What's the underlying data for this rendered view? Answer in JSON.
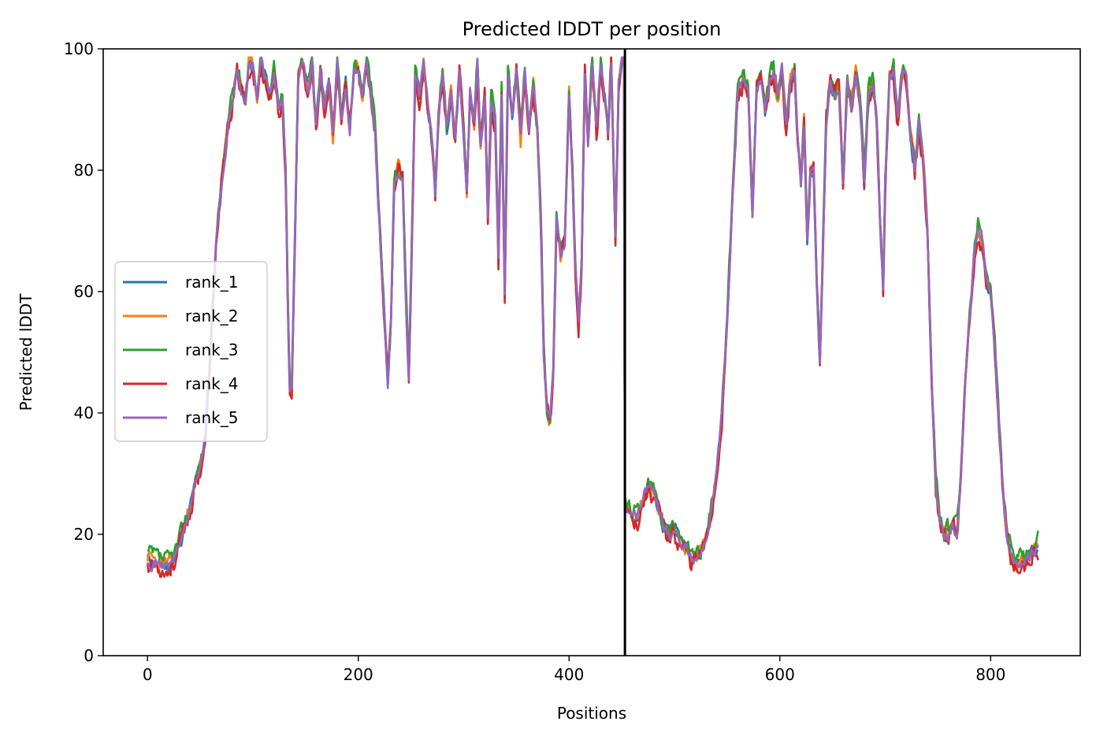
{
  "chart_data": {
    "type": "line",
    "title": "Predicted lDDT per position",
    "xlabel": "Positions",
    "ylabel": "Predicted lDDT",
    "xlim": [
      -42,
      885
    ],
    "ylim": [
      0,
      100
    ],
    "xticks": [
      0,
      200,
      400,
      600,
      800
    ],
    "yticks": [
      0,
      20,
      40,
      60,
      80,
      100
    ],
    "grid": false,
    "legend_position": "center-left",
    "chain_break_x": 453,
    "base_profile": [
      [
        0,
        16
      ],
      [
        5,
        15.5
      ],
      [
        10,
        15
      ],
      [
        15,
        15
      ],
      [
        20,
        14.5
      ],
      [
        25,
        16
      ],
      [
        30,
        18
      ],
      [
        35,
        21
      ],
      [
        40,
        24
      ],
      [
        45,
        28
      ],
      [
        50,
        31
      ],
      [
        55,
        36
      ],
      [
        60,
        50
      ],
      [
        65,
        68
      ],
      [
        70,
        77
      ],
      [
        75,
        85
      ],
      [
        80,
        91
      ],
      [
        85,
        96
      ],
      [
        90,
        93
      ],
      [
        93,
        91
      ],
      [
        96,
        97
      ],
      [
        100,
        97
      ],
      [
        104,
        92
      ],
      [
        108,
        98
      ],
      [
        112,
        95
      ],
      [
        116,
        92
      ],
      [
        120,
        96
      ],
      [
        124,
        90
      ],
      [
        128,
        91
      ],
      [
        131,
        80
      ],
      [
        133,
        60
      ],
      [
        135,
        44
      ],
      [
        137,
        44
      ],
      [
        140,
        70
      ],
      [
        143,
        96
      ],
      [
        147,
        98
      ],
      [
        150,
        95
      ],
      [
        153,
        93
      ],
      [
        156,
        98
      ],
      [
        160,
        87
      ],
      [
        164,
        96
      ],
      [
        168,
        90
      ],
      [
        172,
        95
      ],
      [
        176,
        86
      ],
      [
        180,
        97
      ],
      [
        184,
        88
      ],
      [
        188,
        94
      ],
      [
        192,
        87
      ],
      [
        196,
        97
      ],
      [
        200,
        96
      ],
      [
        204,
        92
      ],
      [
        208,
        98
      ],
      [
        212,
        93
      ],
      [
        216,
        87
      ],
      [
        219,
        75
      ],
      [
        222,
        65
      ],
      [
        225,
        55
      ],
      [
        228,
        45
      ],
      [
        231,
        55
      ],
      [
        234,
        78
      ],
      [
        238,
        80
      ],
      [
        242,
        78
      ],
      [
        245,
        60
      ],
      [
        248,
        45
      ],
      [
        251,
        70
      ],
      [
        254,
        96
      ],
      [
        258,
        92
      ],
      [
        262,
        97
      ],
      [
        266,
        90
      ],
      [
        270,
        85
      ],
      [
        273,
        76
      ],
      [
        276,
        88
      ],
      [
        280,
        96
      ],
      [
        284,
        87
      ],
      [
        288,
        93
      ],
      [
        292,
        85
      ],
      [
        296,
        96
      ],
      [
        300,
        86
      ],
      [
        303,
        76
      ],
      [
        306,
        93
      ],
      [
        310,
        88
      ],
      [
        313,
        98
      ],
      [
        316,
        84
      ],
      [
        320,
        92
      ],
      [
        323,
        72
      ],
      [
        326,
        92
      ],
      [
        330,
        88
      ],
      [
        333,
        66
      ],
      [
        336,
        92
      ],
      [
        339,
        60
      ],
      [
        342,
        96
      ],
      [
        346,
        88
      ],
      [
        350,
        97
      ],
      [
        354,
        85
      ],
      [
        358,
        96
      ],
      [
        362,
        86
      ],
      [
        366,
        94
      ],
      [
        370,
        86
      ],
      [
        373,
        72
      ],
      [
        376,
        50
      ],
      [
        379,
        40
      ],
      [
        382,
        38
      ],
      [
        385,
        46
      ],
      [
        388,
        72
      ],
      [
        392,
        66
      ],
      [
        396,
        68
      ],
      [
        400,
        92
      ],
      [
        403,
        80
      ],
      [
        406,
        64
      ],
      [
        409,
        55
      ],
      [
        412,
        65
      ],
      [
        415,
        96
      ],
      [
        418,
        84
      ],
      [
        422,
        98
      ],
      [
        426,
        86
      ],
      [
        430,
        97
      ],
      [
        434,
        92
      ],
      [
        437,
        86
      ],
      [
        440,
        98
      ],
      [
        444,
        68
      ],
      [
        447,
        93
      ],
      [
        450,
        98
      ],
      [
        453,
        25
      ],
      [
        456,
        24
      ],
      [
        460,
        23
      ],
      [
        465,
        23
      ],
      [
        470,
        26
      ],
      [
        475,
        28
      ],
      [
        480,
        27
      ],
      [
        485,
        24
      ],
      [
        490,
        21
      ],
      [
        495,
        20
      ],
      [
        500,
        21
      ],
      [
        505,
        19
      ],
      [
        510,
        18
      ],
      [
        515,
        16
      ],
      [
        520,
        16
      ],
      [
        525,
        17
      ],
      [
        530,
        19
      ],
      [
        535,
        24
      ],
      [
        540,
        30
      ],
      [
        545,
        40
      ],
      [
        550,
        55
      ],
      [
        555,
        75
      ],
      [
        560,
        92
      ],
      [
        565,
        95
      ],
      [
        570,
        93
      ],
      [
        574,
        72
      ],
      [
        578,
        93
      ],
      [
        582,
        95
      ],
      [
        586,
        90
      ],
      [
        590,
        94
      ],
      [
        594,
        96
      ],
      [
        598,
        92
      ],
      [
        602,
        96
      ],
      [
        606,
        88
      ],
      [
        610,
        95
      ],
      [
        614,
        96
      ],
      [
        617,
        85
      ],
      [
        620,
        78
      ],
      [
        623,
        88
      ],
      [
        626,
        68
      ],
      [
        629,
        80
      ],
      [
        632,
        80
      ],
      [
        635,
        62
      ],
      [
        638,
        48
      ],
      [
        641,
        68
      ],
      [
        644,
        88
      ],
      [
        648,
        95
      ],
      [
        652,
        92
      ],
      [
        656,
        94
      ],
      [
        660,
        78
      ],
      [
        664,
        95
      ],
      [
        668,
        90
      ],
      [
        672,
        96
      ],
      [
        676,
        92
      ],
      [
        680,
        78
      ],
      [
        684,
        92
      ],
      [
        688,
        94
      ],
      [
        692,
        88
      ],
      [
        695,
        72
      ],
      [
        698,
        60
      ],
      [
        700,
        78
      ],
      [
        704,
        95
      ],
      [
        708,
        96
      ],
      [
        712,
        88
      ],
      [
        716,
        96
      ],
      [
        720,
        95
      ],
      [
        724,
        86
      ],
      [
        728,
        80
      ],
      [
        732,
        88
      ],
      [
        736,
        82
      ],
      [
        740,
        70
      ],
      [
        744,
        45
      ],
      [
        748,
        28
      ],
      [
        752,
        22
      ],
      [
        756,
        20
      ],
      [
        760,
        20
      ],
      [
        764,
        21
      ],
      [
        768,
        20
      ],
      [
        772,
        30
      ],
      [
        776,
        45
      ],
      [
        780,
        55
      ],
      [
        784,
        65
      ],
      [
        788,
        70
      ],
      [
        792,
        68
      ],
      [
        796,
        62
      ],
      [
        800,
        60
      ],
      [
        804,
        50
      ],
      [
        808,
        38
      ],
      [
        812,
        26
      ],
      [
        816,
        19
      ],
      [
        820,
        16
      ],
      [
        825,
        15
      ],
      [
        830,
        15
      ],
      [
        835,
        16
      ],
      [
        840,
        17
      ],
      [
        845,
        18
      ]
    ],
    "series": [
      {
        "name": "rank_1",
        "color": "#1f77b4",
        "seed": 11,
        "bias": 0.0,
        "jitter": 1.2
      },
      {
        "name": "rank_2",
        "color": "#ff7f0e",
        "seed": 23,
        "bias": 0.3,
        "jitter": 1.3
      },
      {
        "name": "rank_3",
        "color": "#2ca02c",
        "seed": 37,
        "bias": 0.8,
        "jitter": 1.5
      },
      {
        "name": "rank_4",
        "color": "#d62728",
        "seed": 53,
        "bias": -0.4,
        "jitter": 1.8
      },
      {
        "name": "rank_5",
        "color": "#9467bd",
        "seed": 71,
        "bias": 0.1,
        "jitter": 1.0
      }
    ]
  }
}
